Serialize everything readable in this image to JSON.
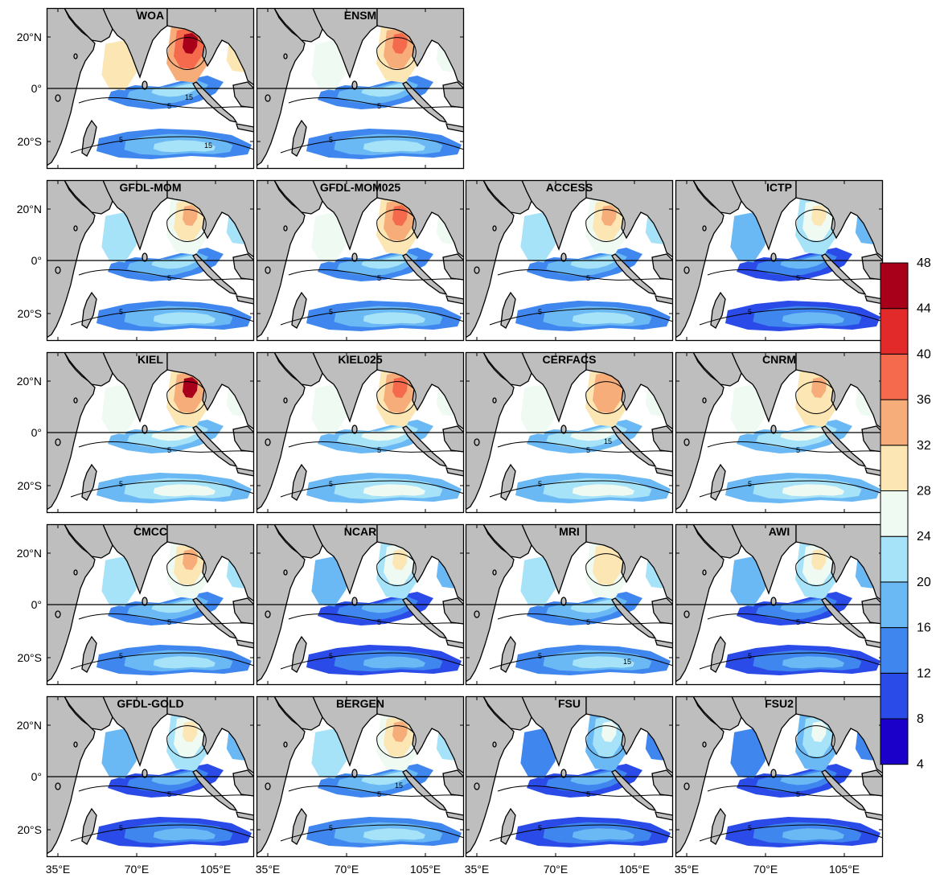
{
  "panels": [
    {
      "title": "WOA",
      "row": 0,
      "col": 0,
      "hot": [
        2,
        7,
        8,
        10
      ],
      "eq15": true,
      "s15": true,
      "ylabels": true,
      "xlabels": false
    },
    {
      "title": "ENSM",
      "row": 0,
      "col": 1,
      "hot": [
        2,
        6,
        7,
        8
      ],
      "eq15": false,
      "s15": false,
      "ylabels": false,
      "xlabels": false
    },
    {
      "title": "GFDL-MOM",
      "row": 1,
      "col": 0,
      "hot": [
        2,
        5,
        6,
        7
      ],
      "eq15": false,
      "s15": false,
      "ylabels": true,
      "xlabels": false
    },
    {
      "title": "GFDL-MOM025",
      "row": 1,
      "col": 1,
      "hot": [
        2,
        6,
        7,
        8
      ],
      "eq15": false,
      "s15": false,
      "ylabels": false,
      "xlabels": false
    },
    {
      "title": "ACCESS",
      "row": 1,
      "col": 2,
      "hot": [
        2,
        5,
        6,
        7
      ],
      "eq15": false,
      "s15": false,
      "ylabels": false,
      "xlabels": false
    },
    {
      "title": "ICTP",
      "row": 1,
      "col": 3,
      "hot": [
        1,
        4,
        5,
        6
      ],
      "eq15": false,
      "s15": false,
      "ylabels": false,
      "xlabels": false
    },
    {
      "title": "KIEL",
      "row": 2,
      "col": 0,
      "hot": [
        3,
        6,
        7,
        10
      ],
      "eq15": false,
      "s15": false,
      "ylabels": true,
      "xlabels": false
    },
    {
      "title": "KIEL025",
      "row": 2,
      "col": 1,
      "hot": [
        3,
        6,
        7,
        8
      ],
      "eq15": false,
      "s15": false,
      "ylabels": false,
      "xlabels": false
    },
    {
      "title": "CERFACS",
      "row": 2,
      "col": 2,
      "hot": [
        3,
        6,
        7,
        7
      ],
      "eq15": true,
      "s15": false,
      "ylabels": false,
      "xlabels": false
    },
    {
      "title": "CNRM",
      "row": 2,
      "col": 3,
      "hot": [
        3,
        6,
        6,
        7
      ],
      "eq15": false,
      "s15": false,
      "ylabels": false,
      "xlabels": false
    },
    {
      "title": "CMCC",
      "row": 3,
      "col": 0,
      "hot": [
        2,
        5,
        6,
        7
      ],
      "eq15": false,
      "s15": false,
      "ylabels": true,
      "xlabels": false
    },
    {
      "title": "NCAR",
      "row": 3,
      "col": 1,
      "hot": [
        1,
        4,
        5,
        6
      ],
      "eq15": false,
      "s15": false,
      "ylabels": false,
      "xlabels": false
    },
    {
      "title": "MRI",
      "row": 3,
      "col": 2,
      "hot": [
        2,
        5,
        6,
        6
      ],
      "eq15": false,
      "s15": true,
      "ylabels": false,
      "xlabels": false
    },
    {
      "title": "AWI",
      "row": 3,
      "col": 3,
      "hot": [
        1,
        4,
        5,
        6
      ],
      "eq15": false,
      "s15": false,
      "ylabels": false,
      "xlabels": false
    },
    {
      "title": "GFDL-GOLD",
      "row": 4,
      "col": 0,
      "hot": [
        1,
        4,
        5,
        6
      ],
      "eq15": false,
      "s15": false,
      "ylabels": true,
      "xlabels": true
    },
    {
      "title": "BERGEN",
      "row": 4,
      "col": 1,
      "hot": [
        2,
        5,
        6,
        7
      ],
      "eq15": true,
      "s15": false,
      "ylabels": false,
      "xlabels": true
    },
    {
      "title": "FSU",
      "row": 4,
      "col": 2,
      "hot": [
        1,
        3,
        4,
        5
      ],
      "eq15": false,
      "s15": false,
      "ylabels": false,
      "xlabels": true
    },
    {
      "title": "FSU2",
      "row": 4,
      "col": 3,
      "hot": [
        1,
        3,
        4,
        5
      ],
      "eq15": false,
      "s15": false,
      "ylabels": false,
      "xlabels": true
    }
  ],
  "lat_labels": [
    "20°N",
    "0°",
    "20°S"
  ],
  "lon_labels": [
    "35°E",
    "70°E",
    "105°E"
  ],
  "contour_labels": [
    "5",
    "15"
  ],
  "colorbar": {
    "ticks": [
      "48",
      "44",
      "40",
      "36",
      "32",
      "28",
      "24",
      "20",
      "16",
      "12",
      "8",
      "4"
    ],
    "colors": [
      "#1a00c8",
      "#2a4be8",
      "#3f86ee",
      "#6ab8f4",
      "#a6e2f8",
      "#eefaf2",
      "#fbe6b4",
      "#f6ad7a",
      "#f56a4c",
      "#e22a2a",
      "#a8001a"
    ]
  },
  "colors": {
    "land": "#bebebe",
    "ocean": "#ffffff",
    "frame": "#000000"
  }
}
